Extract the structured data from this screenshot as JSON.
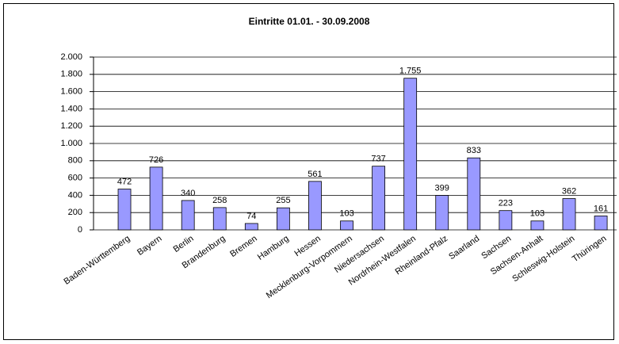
{
  "chart_data": {
    "type": "bar",
    "title": "Eintritte 01.01. - 30.09.2008",
    "categories": [
      "Baden-Württemberg",
      "Bayern",
      "Berlin",
      "Brandenburg",
      "Bremen",
      "Hamburg",
      "Hessen",
      "Mecklenburg-Vorpommern",
      "Niedersachsen",
      "Nordrhein-Westfalen",
      "Rheinland-Pfalz",
      "Saarland",
      "Sachsen",
      "Sachsen-Anhalt",
      "Schleswig-Holstein",
      "Thüringen"
    ],
    "values": [
      472,
      726,
      340,
      258,
      74,
      255,
      561,
      103,
      737,
      1755,
      399,
      833,
      223,
      103,
      362,
      161
    ],
    "value_labels": [
      "472",
      "726",
      "340",
      "258",
      "74",
      "255",
      "561",
      "103",
      "737",
      "1.755",
      "399",
      "833",
      "223",
      "103",
      "362",
      "161"
    ],
    "color": "#9999ff",
    "ylim": [
      0,
      2000
    ],
    "yticks": [
      0,
      {
        "value": 200,
        "label": "200"
      },
      400,
      600,
      800,
      {
        "value": 1000,
        "label": "1.000"
      },
      {
        "value": 1200,
        "label": "1.200"
      },
      {
        "value": 1400,
        "label": "1.400"
      },
      {
        "value": 1600,
        "label": "1.600"
      },
      {
        "value": 1800,
        "label": "1.800"
      },
      {
        "value": 2000,
        "label": "2.000"
      }
    ],
    "grid": true
  }
}
